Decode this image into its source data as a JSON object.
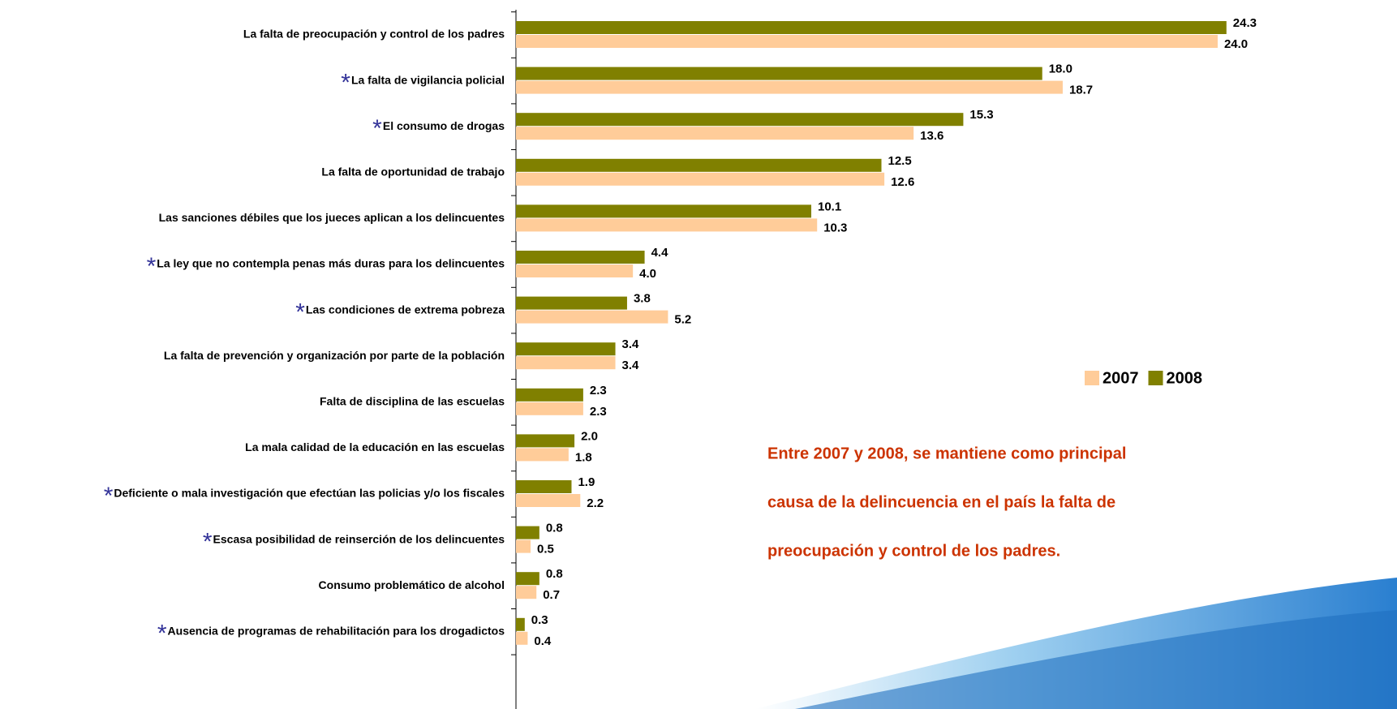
{
  "chart_data": {
    "type": "hbar",
    "categories": [
      "La falta de preocupación y control de los padres",
      "La falta de vigilancia policial",
      "El consumo de drogas",
      "La falta de oportunidad de trabajo",
      "Las sanciones débiles que los jueces aplican a los delincuentes",
      "La ley que no contempla penas más duras para los delincuentes",
      "Las condiciones de extrema pobreza",
      "La falta de prevención y organización por parte de la población",
      "Falta de disciplina de las escuelas",
      "La mala calidad de la educación en las escuelas",
      "Deficiente o mala investigación que efectúan las policias y/o los fiscales",
      "Escasa posibilidad de reinserción de los delincuentes",
      "Consumo problemático de alcohol",
      "Ausencia de programas de rehabilitación para los drogadictos"
    ],
    "note_symbol": "*",
    "starred": [
      false,
      true,
      true,
      false,
      false,
      true,
      true,
      false,
      false,
      false,
      true,
      true,
      false,
      true
    ],
    "series": [
      {
        "name": "2007",
        "color": "#FFCC99",
        "values": [
          24.0,
          18.7,
          13.6,
          12.6,
          10.3,
          4.0,
          5.2,
          3.4,
          2.3,
          1.8,
          2.2,
          0.5,
          0.7,
          0.4
        ],
        "value_labels": [
          "24.0",
          "18.7",
          "13.6",
          "12.6",
          "10.3",
          "4.0",
          "5.2",
          "3.4",
          "2.3",
          "1.8",
          "2.2",
          "0.5",
          "0.7",
          "0.4"
        ]
      },
      {
        "name": "2008",
        "color": "#808000",
        "values": [
          24.3,
          18.0,
          15.3,
          12.5,
          10.1,
          4.4,
          3.8,
          3.4,
          2.3,
          2.0,
          1.9,
          0.8,
          0.8,
          0.3
        ],
        "value_labels": [
          "24.3",
          "18.0",
          "15.3",
          "12.5",
          "10.1",
          "4.4",
          "3.8",
          "3.4",
          "2.3",
          "2.0",
          "1.9",
          "0.8",
          "0.8",
          "0.3"
        ]
      }
    ],
    "xlim": [
      0,
      25
    ],
    "annotation": [
      "Entre 2007 y 2008, se mantiene como principal",
      "causa de la delincuencia en el país la falta de",
      "preocupación y control de los padres."
    ]
  }
}
